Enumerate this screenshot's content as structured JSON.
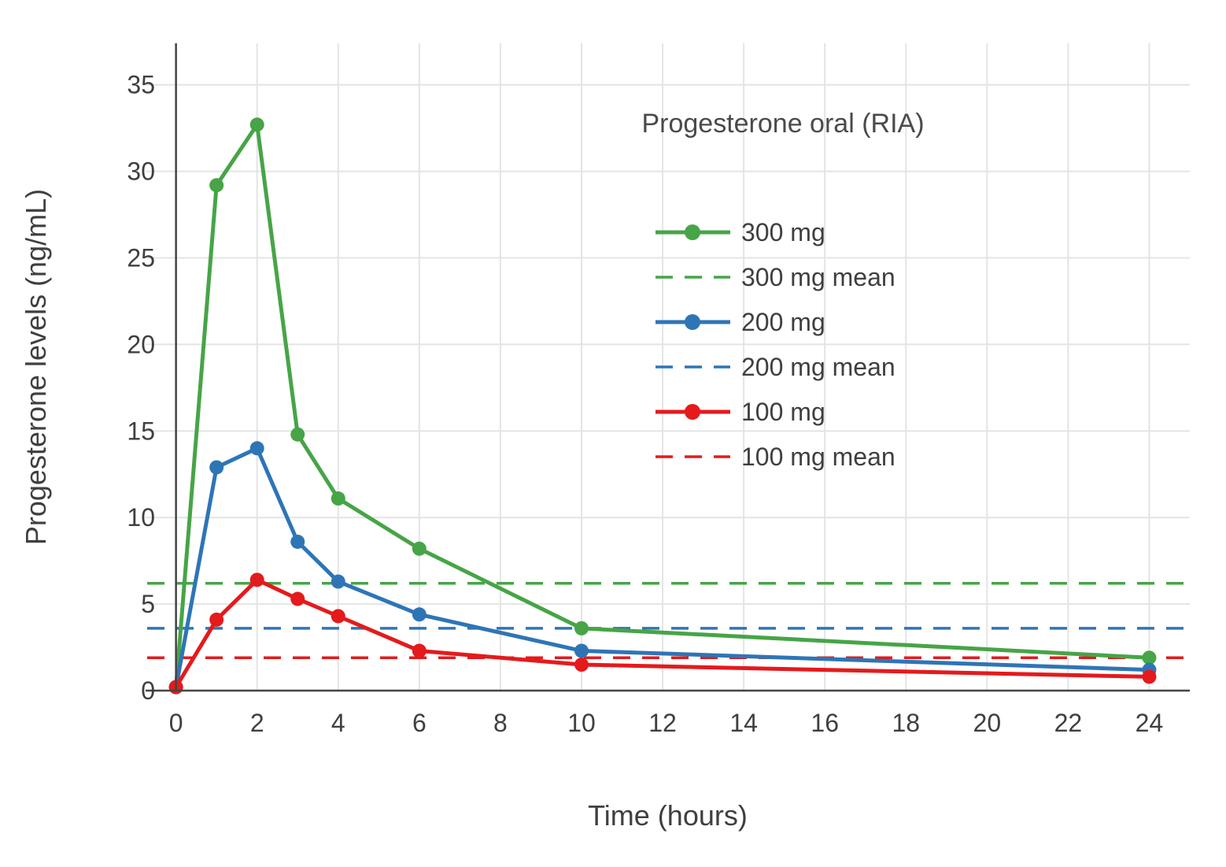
{
  "chart_data": {
    "type": "line",
    "title": "Progesterone oral (RIA)",
    "xlabel": "Time (hours)",
    "ylabel": "Progesterone levels (ng/mL)",
    "x": [
      0,
      1,
      2,
      3,
      4,
      6,
      10,
      24
    ],
    "xlim": [
      -0.75,
      25.0
    ],
    "ylim": [
      0,
      37.4
    ],
    "xticks": [
      0,
      2,
      4,
      6,
      8,
      10,
      12,
      14,
      16,
      18,
      20,
      22,
      24
    ],
    "yticks": [
      0,
      5,
      10,
      15,
      20,
      25,
      30,
      35
    ],
    "grid": true,
    "legend_position": "inside-upper-right",
    "series": [
      {
        "name": "300 mg",
        "color": "#47a447",
        "dash": false,
        "markers": true,
        "values": [
          0.2,
          29.2,
          32.7,
          14.8,
          11.1,
          8.2,
          3.6,
          1.9
        ]
      },
      {
        "name": "300 mg mean",
        "color": "#47a447",
        "dash": true,
        "markers": false,
        "mean": 6.2
      },
      {
        "name": "200 mg",
        "color": "#2e75b6",
        "dash": false,
        "markers": true,
        "values": [
          0.2,
          12.9,
          14.0,
          8.6,
          6.3,
          4.4,
          2.3,
          1.2
        ]
      },
      {
        "name": "200 mg mean",
        "color": "#2e75b6",
        "dash": true,
        "markers": false,
        "mean": 3.6
      },
      {
        "name": "100 mg",
        "color": "#e41a1c",
        "dash": false,
        "markers": true,
        "values": [
          0.2,
          4.1,
          6.4,
          5.3,
          4.3,
          2.3,
          1.5,
          0.8
        ]
      },
      {
        "name": "100 mg mean",
        "color": "#e41a1c",
        "dash": true,
        "markers": false,
        "mean": 1.9
      }
    ]
  },
  "style": {
    "grid_color": "#e4e4e4",
    "axis_color": "#444444",
    "text_color": "#3f3f3f",
    "title_color": "#4a4a4a"
  }
}
